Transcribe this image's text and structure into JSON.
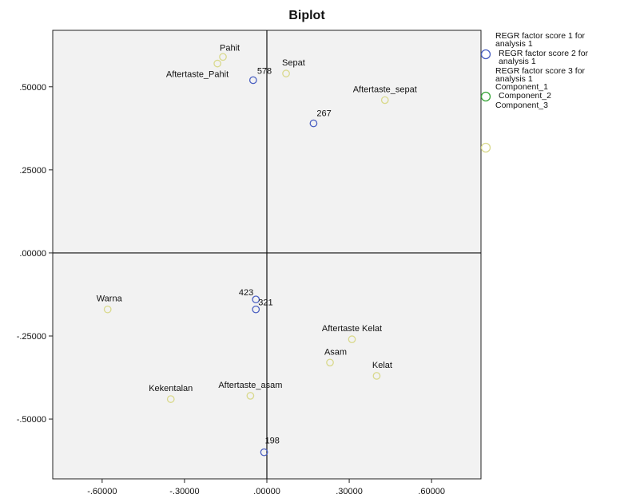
{
  "chart_data": {
    "type": "scatter",
    "title": "Biplot",
    "xlim": [
      -0.78,
      0.78
    ],
    "ylim": [
      -0.68,
      0.67
    ],
    "x_ticks": [
      -0.6,
      -0.3,
      0.0,
      0.3,
      0.6
    ],
    "x_tick_labels": [
      "-.60000",
      "-.30000",
      ".00000",
      ".30000",
      ".60000"
    ],
    "y_ticks": [
      0.5,
      0.25,
      0.0,
      -0.25,
      -0.5
    ],
    "y_tick_labels": [
      ".50000",
      ".25000",
      ".00000",
      "-.25000",
      "-.50000"
    ],
    "grid": false,
    "legend_placement": "right",
    "legend": [
      {
        "text": "REGR factor score  1 for analysis 1",
        "marker_color": "#4a5fc1"
      },
      {
        "text": "REGR factor score  2 for analysis 1",
        "marker_color": ""
      },
      {
        "text": "REGR factor score  3 for analysis 1",
        "marker_color": "#3aa63a"
      },
      {
        "text": "Component_1",
        "marker_color": ""
      },
      {
        "text": "Component_2",
        "marker_color": "#d9d98c"
      },
      {
        "text": "Component_3",
        "marker_color": ""
      }
    ],
    "series": [
      {
        "color": "#4a5fc1",
        "points": [
          {
            "label": "578",
            "x": -0.05,
            "y": 0.52
          },
          {
            "label": "267",
            "x": 0.17,
            "y": 0.39
          },
          {
            "label": "423",
            "x": -0.04,
            "y": -0.14
          },
          {
            "label": "321",
            "x": -0.04,
            "y": -0.17
          },
          {
            "label": "198",
            "x": -0.01,
            "y": -0.6
          }
        ]
      },
      {
        "color": "#d9d98c",
        "points": [
          {
            "label": "Pahit",
            "x": -0.16,
            "y": 0.59
          },
          {
            "label": "Aftertaste_Pahit",
            "x": -0.18,
            "y": 0.57
          },
          {
            "label": "Sepat",
            "x": 0.07,
            "y": 0.54
          },
          {
            "label": "Aftertaste_sepat",
            "x": 0.43,
            "y": 0.46
          },
          {
            "label": "Warna",
            "x": -0.58,
            "y": -0.17
          },
          {
            "label": "Aftertaste Kelat",
            "x": 0.31,
            "y": -0.26
          },
          {
            "label": "Asam",
            "x": 0.23,
            "y": -0.33
          },
          {
            "label": "Kelat",
            "x": 0.4,
            "y": -0.37
          },
          {
            "label": "Kekentalan",
            "x": -0.35,
            "y": -0.44
          },
          {
            "label": "Aftertaste_asam",
            "x": -0.06,
            "y": -0.43
          }
        ]
      }
    ]
  }
}
